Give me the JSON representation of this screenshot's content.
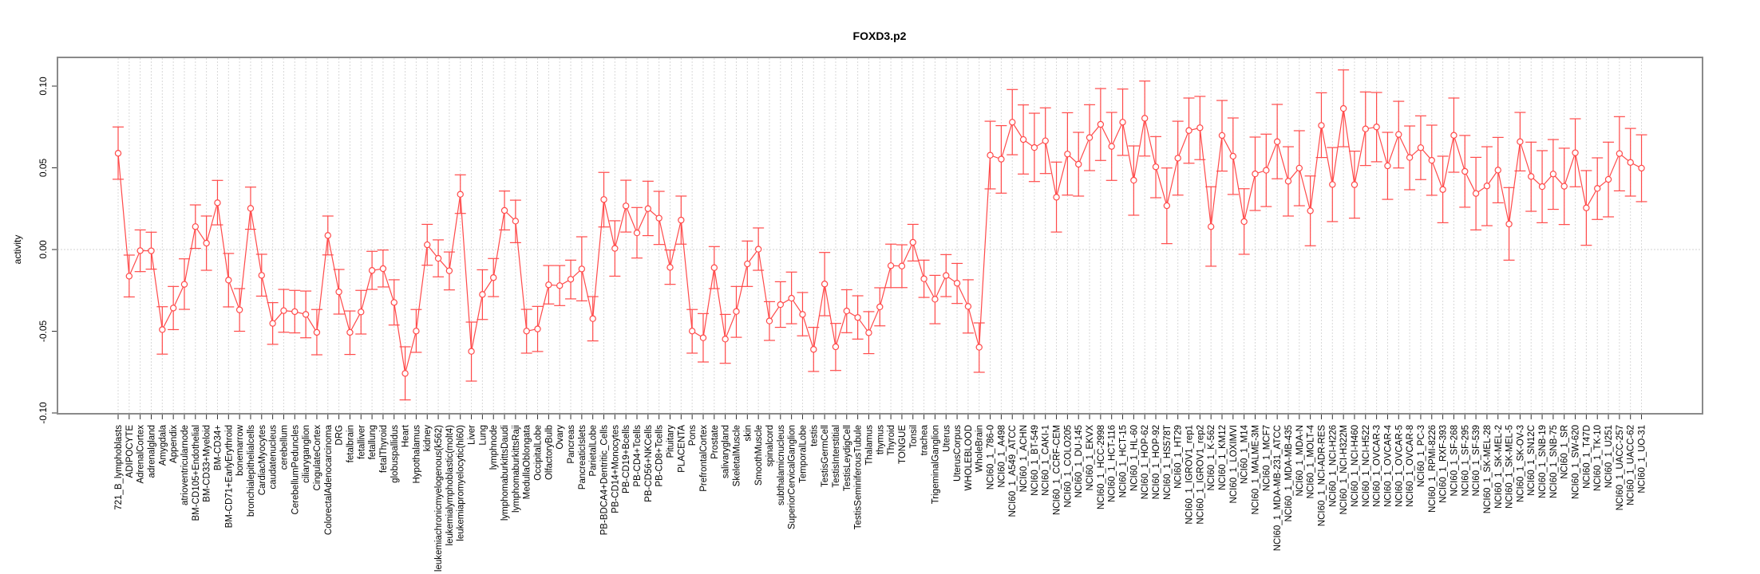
{
  "chart_data": {
    "type": "line",
    "title": "FOXD3.p2",
    "xlabel": "",
    "ylabel": "activity",
    "ylim": [
      -0.1,
      0.12
    ],
    "yticks": [
      -0.1,
      -0.05,
      0.0,
      0.05,
      0.1
    ],
    "ytick_labels": [
      "-0.10",
      "-0.05",
      "0.00",
      "0.05",
      "0.10"
    ],
    "grid": true,
    "legend": "none",
    "series_color": "#ff4a4a",
    "categories": [
      "721_B_lymphoblasts",
      "ADIPOCYTE",
      "AdrenalCortex",
      "adrenalgland",
      "Amygdala",
      "Appendix",
      "atrioventricularnode",
      "BM-CD105+Endothelial",
      "BM-CD33+Myeloid",
      "BM-CD34+",
      "BM-CD71+EarlyErythroid",
      "bonemarrow",
      "bronchialepithelialcells",
      "CardiacMyocytes",
      "caudatenucleus",
      "cerebellum",
      "CerebellumPeduncles",
      "ciliaryganglion",
      "CingulateCortex",
      "ColorectalAdenocarcinoma",
      "DRG",
      "fetalbrain",
      "fetalliver",
      "fetallung",
      "fetalThyroid",
      "globuspallidus",
      "Heart",
      "Hypothalamus",
      "kidney",
      "leukemiachronicmyelogenous(k562)",
      "leukemialymphoblastic(molt4)",
      "leukemiapromyelocytic(hl60)",
      "Liver",
      "Lung",
      "lymphnode",
      "lymphomaburkittsDaudi",
      "lymphomaburkittsRaji",
      "MedullaOblongata",
      "OccipitalLobe",
      "OlfactoryBulb",
      "Ovary",
      "Pancreas",
      "PancreaticIslets",
      "ParietalLobe",
      "PB-BDCA4+Dentritic_Cells",
      "PB-CD14+Monocytes",
      "PB-CD19+Bcells",
      "PB-CD4+Tcells",
      "PB-CD56+NKCells",
      "PB-CD8+Tcells",
      "Pituitary",
      "PLACENTA",
      "Pons",
      "PrefrontalCortex",
      "Prostate",
      "salivarygland",
      "SkeletalMuscle",
      "skin",
      "SmoothMuscle",
      "spinalcord",
      "subthalamicnucleus",
      "SuperiorCervicalGanglion",
      "TemporalLobe",
      "testis",
      "TestisGermCell",
      "TestisInterstitial",
      "TestisLeydigCell",
      "TestisSeminiferousTubule",
      "Thalamus",
      "thymus",
      "Thyroid",
      "TONGUE",
      "Tonsil",
      "trachea",
      "TrigeminalGanglion",
      "Uterus",
      "UterusCorpus",
      "WHOLEBLOOD",
      "WholeBrain",
      "NCI60_1_786-0",
      "NCI60_1_A498",
      "NCI60_1_A549_ATCC",
      "NCI60_1_ACHN",
      "NCI60_1_BT-549",
      "NCI60_1_CAKI-1",
      "NCI60_1_CCRF-CEM",
      "NCI60_1_COLO205",
      "NCI60_1_DU-145",
      "NCI60_1_EKVX",
      "NCI60_1_HCC-2998",
      "NCI60_1_HCT-116",
      "NCI60_1_HCT-15",
      "NCI60_1_HL-60",
      "NCI60_1_HOP-62",
      "NCI60_1_HOP-92",
      "NCI60_1_HS578T",
      "NCI60_1_HT29",
      "NCI60_1_IGROV1_rep1",
      "NCI60_1_IGROV1_rep2",
      "NCI60_1_K-562",
      "NCI60_1_KM12",
      "NCI60_1_LOXIMVI",
      "NCI60_1_M14",
      "NCI60_1_MALME-3M",
      "NCI60_1_MCF7",
      "NCI60_1_MDA-MB-231_ATCC",
      "NCI60_1_MDA-MB-435",
      "NCI60_1_MDA-N",
      "NCI60_1_MOLT-4",
      "NCI60_1_NCI-ADR-RES",
      "NCI60_1_NCI-H226",
      "NCI60_1_NCI-H322M",
      "NCI60_1_NCI-H460",
      "NCI60_1_NCI-H522",
      "NCI60_1_OVCAR-3",
      "NCI60_1_OVCAR-4",
      "NCI60_1_OVCAR-5",
      "NCI60_1_OVCAR-8",
      "NCI60_1_PC-3",
      "NCI60_1_RPMI-8226",
      "NCI60_1_RXF-393",
      "NCI60_1_SF-268",
      "NCI60_1_SF-295",
      "NCI60_1_SF-539",
      "NCI60_1_SK-MEL-28",
      "NCI60_1_SK-MEL-2",
      "NCI60_1_SK-MEL-5",
      "NCI60_1_SK-OV-3",
      "NCI60_1_SN12C",
      "NCI60_1_SNB-19",
      "NCI60_1_SNB-75",
      "NCI60_1_SR",
      "NCI60_1_SW-620",
      "NCI60_1_T47D",
      "NCI60_1_TK-10",
      "NCI60_1_U251",
      "NCI60_1_UACC-257",
      "NCI60_1_UACC-62",
      "NCI60_1_UO-31"
    ],
    "values": [
      0.0589,
      -0.0163,
      -0.0007,
      -0.0008,
      -0.049,
      -0.0358,
      -0.0213,
      0.014,
      0.0039,
      0.0286,
      -0.0187,
      -0.0369,
      0.0252,
      -0.0158,
      -0.0452,
      -0.0374,
      -0.038,
      -0.0397,
      -0.0507,
      0.0086,
      -0.0259,
      -0.0507,
      -0.0382,
      -0.0128,
      -0.0117,
      -0.0324,
      -0.0758,
      -0.0499,
      0.0029,
      -0.0054,
      -0.013,
      0.0338,
      -0.0623,
      -0.0275,
      -0.0172,
      0.0239,
      0.0174,
      -0.0499,
      -0.0486,
      -0.0216,
      -0.0221,
      -0.0182,
      -0.0119,
      -0.0423,
      0.0306,
      0.0007,
      0.0267,
      0.0102,
      0.025,
      0.0192,
      -0.0109,
      0.018,
      -0.0499,
      -0.054,
      -0.0111,
      -0.0548,
      -0.0379,
      -0.0088,
      0.0002,
      -0.0437,
      -0.0337,
      -0.0298,
      -0.0397,
      -0.0611,
      -0.0211,
      -0.0595,
      -0.0376,
      -0.0416,
      -0.0509,
      -0.0351,
      -0.0099,
      -0.0101,
      0.0044,
      -0.0179,
      -0.0304,
      -0.0159,
      -0.0206,
      -0.0348,
      -0.0598,
      0.0577,
      0.0553,
      0.0779,
      0.0673,
      0.0624,
      0.0665,
      0.032,
      0.0584,
      0.0522,
      0.0685,
      0.0766,
      0.0631,
      0.0779,
      0.0424,
      0.0803,
      0.0506,
      0.0268,
      0.0559,
      0.0728,
      0.0745,
      0.014,
      0.0698,
      0.0571,
      0.0171,
      0.0463,
      0.0485,
      0.066,
      0.0418,
      0.0498,
      0.0237,
      0.0759,
      0.0398,
      0.0863,
      0.0397,
      0.0738,
      0.075,
      0.0512,
      0.0704,
      0.0563,
      0.0623,
      0.0546,
      0.0367,
      0.0699,
      0.0478,
      0.0343,
      0.0389,
      0.0486,
      0.0156,
      0.066,
      0.0447,
      0.0385,
      0.0462,
      0.0387,
      0.0592,
      0.0255,
      0.0374,
      0.0429,
      0.0587,
      0.0533,
      0.0498
    ],
    "upper": [
      0.075,
      -0.0034,
      0.012,
      0.0106,
      -0.035,
      -0.0226,
      -0.0057,
      0.0273,
      0.0205,
      0.0423,
      -0.0024,
      -0.0239,
      0.0382,
      -0.0029,
      -0.0325,
      -0.0244,
      -0.025,
      -0.0254,
      -0.0367,
      0.0205,
      -0.0122,
      -0.0376,
      -0.025,
      -0.0011,
      -0.0003,
      -0.0185,
      -0.0595,
      -0.0367,
      0.0154,
      0.0059,
      -0.0015,
      0.0457,
      -0.0444,
      -0.0124,
      -0.0055,
      0.0358,
      0.0302,
      -0.0366,
      -0.0348,
      -0.0098,
      -0.0098,
      -0.0065,
      0.0078,
      -0.0288,
      0.0472,
      0.0176,
      0.0424,
      0.0257,
      0.0418,
      0.0356,
      -0.0003,
      0.0327,
      -0.0367,
      -0.0392,
      0.0018,
      -0.0397,
      -0.0226,
      0.0052,
      0.0132,
      -0.0319,
      -0.0197,
      -0.0138,
      -0.0263,
      -0.0476,
      -0.0018,
      -0.0452,
      -0.0246,
      -0.0283,
      -0.038,
      -0.0234,
      0.0033,
      0.0029,
      0.0154,
      -0.0065,
      -0.0158,
      -0.0031,
      -0.0085,
      -0.0185,
      -0.0449,
      0.0785,
      0.0758,
      0.0979,
      0.0885,
      0.0834,
      0.0867,
      0.0535,
      0.0837,
      0.0717,
      0.0886,
      0.0985,
      0.0839,
      0.0982,
      0.0634,
      0.1031,
      0.0691,
      0.0499,
      0.0785,
      0.0927,
      0.0937,
      0.0384,
      0.0912,
      0.0805,
      0.0372,
      0.0688,
      0.0706,
      0.0888,
      0.0629,
      0.0727,
      0.045,
      0.0959,
      0.0624,
      0.1099,
      0.0602,
      0.0964,
      0.0961,
      0.0717,
      0.0907,
      0.0756,
      0.0818,
      0.0761,
      0.0571,
      0.0927,
      0.0698,
      0.0564,
      0.0629,
      0.0686,
      0.0379,
      0.0839,
      0.0657,
      0.0605,
      0.0673,
      0.062,
      0.08,
      0.0483,
      0.0561,
      0.0657,
      0.0813,
      0.0741,
      0.0702
    ],
    "lower": [
      0.043,
      -0.029,
      -0.0135,
      -0.012,
      -0.064,
      -0.049,
      -0.0366,
      0.0007,
      -0.0127,
      0.0151,
      -0.0351,
      -0.05,
      0.0124,
      -0.0285,
      -0.058,
      -0.0506,
      -0.051,
      -0.054,
      -0.0644,
      -0.0033,
      -0.0395,
      -0.0642,
      -0.0517,
      -0.0244,
      -0.0229,
      -0.0462,
      -0.092,
      -0.0629,
      -0.0096,
      -0.0167,
      -0.0247,
      0.0221,
      -0.0805,
      -0.0428,
      -0.0288,
      0.012,
      0.0042,
      -0.0634,
      -0.0624,
      -0.0333,
      -0.0343,
      -0.0302,
      -0.0314,
      -0.0559,
      0.0138,
      -0.0163,
      0.0107,
      -0.0052,
      0.0085,
      0.0031,
      -0.0213,
      0.0033,
      -0.0634,
      -0.0688,
      -0.0239,
      -0.0696,
      -0.0537,
      -0.0226,
      -0.0127,
      -0.0556,
      -0.0476,
      -0.0454,
      -0.0528,
      -0.0746,
      -0.0405,
      -0.074,
      -0.0509,
      -0.0548,
      -0.0637,
      -0.0467,
      -0.0233,
      -0.0233,
      -0.007,
      -0.0293,
      -0.0454,
      -0.0288,
      -0.033,
      -0.0511,
      -0.0751,
      0.0371,
      0.0345,
      0.058,
      0.0462,
      0.0416,
      0.0465,
      0.0107,
      0.0333,
      0.0327,
      0.0483,
      0.0545,
      0.0423,
      0.0576,
      0.021,
      0.0572,
      0.0317,
      0.0036,
      0.0333,
      0.0528,
      0.055,
      -0.0102,
      0.048,
      0.0337,
      -0.0029,
      0.0239,
      0.0263,
      0.0433,
      0.0205,
      0.0268,
      0.0023,
      0.0563,
      0.0171,
      0.0629,
      0.0192,
      0.0514,
      0.0537,
      0.0307,
      0.0499,
      0.0366,
      0.0428,
      0.0332,
      0.0164,
      0.0473,
      0.0259,
      0.012,
      0.0146,
      0.0286,
      -0.0065,
      0.0481,
      0.0234,
      0.0164,
      0.0246,
      0.0153,
      0.0384,
      0.0026,
      0.0184,
      0.02,
      0.0359,
      0.0327,
      0.0293
    ]
  }
}
